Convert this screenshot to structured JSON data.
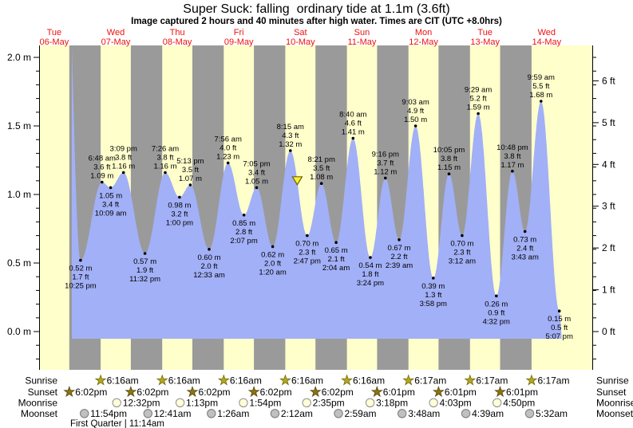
{
  "title": "Super Suck: falling  ordinary tide at 1.1m (3.6ft)",
  "subtitle": "Image captured 2 hours and 40 minutes after high water. Times are CIT (UTC +8.0hrs)",
  "days": [
    {
      "name": "Tue",
      "date": "06-May"
    },
    {
      "name": "Wed",
      "date": "07-May"
    },
    {
      "name": "Thu",
      "date": "08-May"
    },
    {
      "name": "Fri",
      "date": "09-May"
    },
    {
      "name": "Sat",
      "date": "10-May"
    },
    {
      "name": "Sun",
      "date": "11-May"
    },
    {
      "name": "Mon",
      "date": "12-May"
    },
    {
      "name": "Tue",
      "date": "13-May"
    },
    {
      "name": "Wed",
      "date": "14-May"
    }
  ],
  "axes": {
    "left_unit": "metres",
    "right_unit": "feet",
    "left_ticks": [
      {
        "label": "2.0 m",
        "m": 2.0
      },
      {
        "label": "1.5 m",
        "m": 1.5
      },
      {
        "label": "1.0 m",
        "m": 1.0
      },
      {
        "label": "0.5 m",
        "m": 0.5
      },
      {
        "label": "0.0 m",
        "m": 0.0
      }
    ],
    "right_ticks": [
      {
        "label": "6 ft",
        "ft": 6
      },
      {
        "label": "5 ft",
        "ft": 5
      },
      {
        "label": "4 ft",
        "ft": 4
      },
      {
        "label": "3 ft",
        "ft": 3
      },
      {
        "label": "2 ft",
        "ft": 2
      },
      {
        "label": "1 ft",
        "ft": 1
      },
      {
        "label": "0 ft",
        "ft": 0
      }
    ]
  },
  "chart_data": {
    "type": "area",
    "title": "Super Suck: falling  ordinary tide at 1.1m (3.6ft)",
    "x_range": "Tue 06-May 6:16am to Thu 15-May 6:16am (CIT, UTC+8)",
    "ylim_m": [
      -0.27,
      2.09
    ],
    "t_range_hours": [
      6.2667,
      222.2667
    ],
    "day_bands_hours": [
      [
        6.267,
        18.033
      ],
      [
        30.267,
        42.033
      ],
      [
        54.267,
        66.033
      ],
      [
        78.267,
        90.033
      ],
      [
        102.267,
        114.033
      ],
      [
        126.267,
        138.017
      ],
      [
        150.283,
        162.017
      ],
      [
        174.283,
        186.017
      ],
      [
        198.283,
        222.267
      ]
    ],
    "tide_events": [
      {
        "day": "Tue 06-May",
        "time": "10:25 pm",
        "height_m": 0.52,
        "height_ft": 1.7,
        "type": "low",
        "t_hours": 22.4167
      },
      {
        "day": "Wed 07-May",
        "time": "6:48 am",
        "height_m": 1.09,
        "height_ft": 3.6,
        "type": "high",
        "t_hours": 30.8
      },
      {
        "day": "Wed 07-May",
        "time": "10:09 am",
        "height_m": 1.05,
        "height_ft": 3.4,
        "type": "low",
        "t_hours": 34.15
      },
      {
        "day": "Wed 07-May",
        "time": "3:09 pm",
        "height_m": 1.16,
        "height_ft": 3.8,
        "type": "high",
        "t_hours": 39.15
      },
      {
        "day": "Wed 07-May",
        "time": "11:32 pm",
        "height_m": 0.57,
        "height_ft": 1.9,
        "type": "low",
        "t_hours": 47.5333
      },
      {
        "day": "Thu 08-May",
        "time": "7:26 am",
        "height_m": 1.16,
        "height_ft": 3.8,
        "type": "high",
        "t_hours": 55.4333
      },
      {
        "day": "Thu 08-May",
        "time": "1:00 pm",
        "height_m": 0.98,
        "height_ft": 3.2,
        "type": "low",
        "t_hours": 61.0
      },
      {
        "day": "Thu 08-May",
        "time": "5:13 pm",
        "height_m": 1.07,
        "height_ft": 3.5,
        "type": "high",
        "t_hours": 65.2167
      },
      {
        "day": "Fri 09-May",
        "time": "12:33 am",
        "height_m": 0.6,
        "height_ft": 2.0,
        "type": "low",
        "t_hours": 72.55
      },
      {
        "day": "Fri 09-May",
        "time": "7:56 am",
        "height_m": 1.23,
        "height_ft": 4.0,
        "type": "high",
        "t_hours": 79.9333
      },
      {
        "day": "Fri 09-May",
        "time": "2:07 pm",
        "height_m": 0.85,
        "height_ft": 2.8,
        "type": "low",
        "t_hours": 86.1167
      },
      {
        "day": "Fri 09-May",
        "time": "7:05 pm",
        "height_m": 1.05,
        "height_ft": 3.4,
        "type": "high",
        "t_hours": 91.0833
      },
      {
        "day": "Sat 10-May",
        "time": "1:20 am",
        "height_m": 0.62,
        "height_ft": 2.0,
        "type": "low",
        "t_hours": 97.3333
      },
      {
        "day": "Sat 10-May",
        "time": "8:15 am",
        "height_m": 1.32,
        "height_ft": 4.3,
        "type": "high",
        "t_hours": 104.25
      },
      {
        "day": "Sat 10-May",
        "time": "2:47 pm",
        "height_m": 0.7,
        "height_ft": 2.3,
        "type": "low",
        "t_hours": 110.7833
      },
      {
        "day": "Sat 10-May",
        "time": "8:21 pm",
        "height_m": 1.08,
        "height_ft": 3.5,
        "type": "high",
        "t_hours": 116.35
      },
      {
        "day": "Sun 11-May",
        "time": "2:04 am",
        "height_m": 0.65,
        "height_ft": 2.1,
        "type": "low",
        "t_hours": 122.0667
      },
      {
        "day": "Sun 11-May",
        "time": "8:40 am",
        "height_m": 1.41,
        "height_ft": 4.6,
        "type": "high",
        "t_hours": 128.6667
      },
      {
        "day": "Sun 11-May",
        "time": "3:24 pm",
        "height_m": 0.54,
        "height_ft": 1.8,
        "type": "low",
        "t_hours": 135.4
      },
      {
        "day": "Sun 11-May",
        "time": "9:16 pm",
        "height_m": 1.12,
        "height_ft": 3.7,
        "type": "high",
        "t_hours": 141.2667
      },
      {
        "day": "Mon 12-May",
        "time": "2:39 am",
        "height_m": 0.67,
        "height_ft": 2.2,
        "type": "low",
        "t_hours": 146.65
      },
      {
        "day": "Mon 12-May",
        "time": "9:03 am",
        "height_m": 1.5,
        "height_ft": 4.9,
        "type": "high",
        "t_hours": 153.05
      },
      {
        "day": "Mon 12-May",
        "time": "3:58 pm",
        "height_m": 0.39,
        "height_ft": 1.3,
        "type": "low",
        "t_hours": 159.9667
      },
      {
        "day": "Mon 12-May",
        "time": "10:05 pm",
        "height_m": 1.15,
        "height_ft": 3.8,
        "type": "high",
        "t_hours": 166.0833
      },
      {
        "day": "Tue 13-May",
        "time": "3:12 am",
        "height_m": 0.7,
        "height_ft": 2.3,
        "type": "low",
        "t_hours": 171.2
      },
      {
        "day": "Tue 13-May",
        "time": "9:29 am",
        "height_m": 1.59,
        "height_ft": 5.2,
        "type": "high",
        "t_hours": 177.4833
      },
      {
        "day": "Tue 13-May",
        "time": "4:32 pm",
        "height_m": 0.26,
        "height_ft": 0.9,
        "type": "low",
        "t_hours": 184.5333
      },
      {
        "day": "Tue 13-May",
        "time": "10:48 pm",
        "height_m": 1.17,
        "height_ft": 3.8,
        "type": "high",
        "t_hours": 190.8
      },
      {
        "day": "Wed 14-May",
        "time": "3:43 am",
        "height_m": 0.73,
        "height_ft": 2.4,
        "type": "low",
        "t_hours": 195.7167
      },
      {
        "day": "Wed 14-May",
        "time": "9:59 am",
        "height_m": 1.68,
        "height_ft": 5.5,
        "type": "high",
        "t_hours": 201.9833
      },
      {
        "day": "Wed 14-May",
        "time": "5:07 pm",
        "height_m": 0.15,
        "height_ft": 0.5,
        "type": "low",
        "t_hours": 209.1167
      }
    ],
    "virtual_curve_endpoints": {
      "pre": {
        "t_hours": 16.0,
        "height_m": 3.4
      },
      "post": {
        "t_hours": 210.5,
        "height_m": -0.12
      }
    },
    "current_marker": {
      "t_hours": 106.917,
      "height_m": 1.1,
      "meaning": "current tide 1.1m, falling"
    }
  },
  "astro": {
    "rows": [
      {
        "label": "Sunrise",
        "icon": "sunrise-star",
        "events": [
          {
            "time": "6:16am",
            "t_hours": 30.267
          },
          {
            "time": "6:16am",
            "t_hours": 54.267
          },
          {
            "time": "6:16am",
            "t_hours": 78.267
          },
          {
            "time": "6:16am",
            "t_hours": 102.267
          },
          {
            "time": "6:16am",
            "t_hours": 126.267
          },
          {
            "time": "6:17am",
            "t_hours": 150.283
          },
          {
            "time": "6:17am",
            "t_hours": 174.283
          },
          {
            "time": "6:17am",
            "t_hours": 198.283
          }
        ]
      },
      {
        "label": "Sunset",
        "icon": "sunset-star",
        "events": [
          {
            "time": "6:02pm",
            "t_hours": 18.033
          },
          {
            "time": "6:02pm",
            "t_hours": 42.033
          },
          {
            "time": "6:02pm",
            "t_hours": 66.033
          },
          {
            "time": "6:02pm",
            "t_hours": 90.033
          },
          {
            "time": "6:02pm",
            "t_hours": 114.033
          },
          {
            "time": "6:01pm",
            "t_hours": 138.017
          },
          {
            "time": "6:01pm",
            "t_hours": 162.017
          },
          {
            "time": "6:01pm",
            "t_hours": 186.017
          }
        ]
      },
      {
        "label": "Moonrise",
        "icon": "moonrise-circle",
        "events": [
          {
            "time": "12:32pm",
            "t_hours": 36.533
          },
          {
            "time": "1:13pm",
            "t_hours": 61.217
          },
          {
            "time": "1:54pm",
            "t_hours": 85.9
          },
          {
            "time": "2:35pm",
            "t_hours": 110.583
          },
          {
            "time": "3:18pm",
            "t_hours": 135.3
          },
          {
            "time": "4:03pm",
            "t_hours": 160.05
          },
          {
            "time": "4:50pm",
            "t_hours": 184.833
          }
        ]
      },
      {
        "label": "Moonset",
        "icon": "moonset-circle",
        "events": [
          {
            "time": "11:54pm",
            "t_hours": 23.9
          },
          {
            "time": "12:41am",
            "t_hours": 48.683
          },
          {
            "time": "1:26am",
            "t_hours": 73.433
          },
          {
            "time": "2:12am",
            "t_hours": 98.2
          },
          {
            "time": "2:59am",
            "t_hours": 122.983
          },
          {
            "time": "3:48am",
            "t_hours": 147.8
          },
          {
            "time": "4:39am",
            "t_hours": 172.65
          },
          {
            "time": "5:32am",
            "t_hours": 197.533
          }
        ]
      }
    ],
    "moon_phase": "First Quarter | 11:14am"
  },
  "colors": {
    "day_band": "#ffffcc",
    "night_band": "#9a9a9a",
    "tide_fill": "#a2b0f7",
    "day_label": "#ee1111",
    "text": "#000000",
    "marker_fill": "#ffee33",
    "marker_stroke": "#6b6400",
    "sunrise_star": "#b2a71d",
    "sunrise_star_stroke": "#756d10",
    "sunset_star": "#8a7516",
    "sunset_star_stroke": "#57490c",
    "moonrise_fill": "#ffffd8",
    "moonrise_stroke": "#8d8d8d",
    "moonset_fill": "#c0c0c0",
    "moonset_stroke": "#7a7a7a"
  }
}
